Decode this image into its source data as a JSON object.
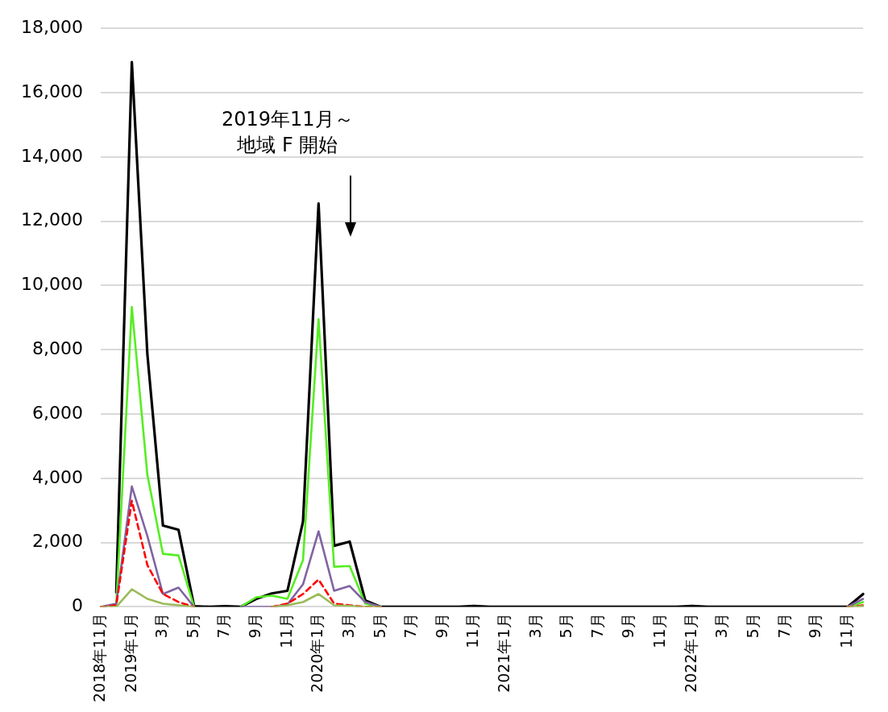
{
  "chart_data": {
    "type": "line",
    "categories": [
      "2018年11月",
      null,
      "2019年1月",
      null,
      "3月",
      null,
      "5月",
      null,
      "7月",
      null,
      "9月",
      null,
      "11月",
      null,
      "2020年1月",
      null,
      "3月",
      null,
      "5月",
      null,
      "7月",
      null,
      "9月",
      null,
      "11月",
      null,
      "2021年1月",
      null,
      "3月",
      null,
      "5月",
      null,
      "7月",
      null,
      "9月",
      null,
      "11月",
      null,
      "2022年1月",
      null,
      "3月",
      null,
      "5月",
      null,
      "7月",
      null,
      "9月",
      null,
      "11月",
      null
    ],
    "series": [
      {
        "color": "#9bbb59",
        "values": [
          0,
          0,
          550,
          250,
          100,
          50,
          0,
          null,
          null,
          null,
          null,
          0,
          50,
          150,
          400,
          50,
          30,
          0,
          0,
          null,
          null,
          null,
          null,
          null,
          null,
          null,
          null,
          null,
          null,
          null,
          null,
          null,
          null,
          null,
          null,
          null,
          null,
          null,
          null,
          null,
          null,
          null,
          null,
          null,
          null,
          null,
          null,
          null,
          0,
          20
        ]
      },
      {
        "color": "#ff0000",
        "line_style": "dashed",
        "values": [
          0,
          50,
          3300,
          1300,
          400,
          150,
          0,
          null,
          null,
          null,
          null,
          0,
          100,
          400,
          850,
          100,
          50,
          0,
          0,
          null,
          null,
          null,
          null,
          null,
          null,
          null,
          null,
          null,
          null,
          null,
          null,
          null,
          null,
          null,
          null,
          null,
          null,
          null,
          null,
          null,
          null,
          null,
          null,
          null,
          null,
          null,
          null,
          null,
          0,
          50
        ]
      },
      {
        "color": "#8064a2",
        "values": [
          0,
          100,
          3750,
          2200,
          400,
          600,
          0,
          null,
          null,
          0,
          0,
          0,
          80,
          700,
          2350,
          500,
          650,
          150,
          0,
          null,
          null,
          null,
          null,
          null,
          null,
          null,
          null,
          null,
          null,
          null,
          null,
          null,
          null,
          null,
          null,
          null,
          null,
          null,
          null,
          null,
          null,
          null,
          null,
          null,
          null,
          null,
          null,
          null,
          0,
          250
        ]
      },
      {
        "color": "#55ee22",
        "values": [
          null,
          100,
          9330,
          4100,
          1650,
          1600,
          0,
          null,
          null,
          0,
          300,
          350,
          250,
          1450,
          8950,
          1250,
          1270,
          100,
          0,
          null,
          null,
          null,
          null,
          null,
          null,
          null,
          null,
          null,
          null,
          null,
          null,
          null,
          null,
          null,
          null,
          null,
          null,
          null,
          null,
          null,
          null,
          null,
          null,
          null,
          null,
          null,
          null,
          null,
          0,
          150
        ]
      },
      {
        "color": "#000000",
        "values": [
          null,
          450,
          16950,
          7850,
          2530,
          2400,
          20,
          0,
          20,
          0,
          250,
          420,
          500,
          2650,
          12550,
          1900,
          2030,
          200,
          0,
          0,
          0,
          0,
          0,
          0,
          30,
          0,
          0,
          0,
          0,
          0,
          0,
          0,
          0,
          0,
          0,
          0,
          0,
          0,
          30,
          0,
          0,
          0,
          0,
          0,
          0,
          0,
          0,
          0,
          0,
          400
        ]
      }
    ],
    "ylim": [
      0,
      18000
    ],
    "yticks": [
      {
        "value": 0,
        "label": "0"
      },
      {
        "value": 2000,
        "label": "2,000"
      },
      {
        "value": 4000,
        "label": "4,000"
      },
      {
        "value": 6000,
        "label": "6,000"
      },
      {
        "value": 8000,
        "label": "8,000"
      },
      {
        "value": 10000,
        "label": "10,000"
      },
      {
        "value": 12000,
        "label": "12,000"
      },
      {
        "value": 14000,
        "label": "14,000"
      },
      {
        "value": 16000,
        "label": "16,000"
      },
      {
        "value": 18000,
        "label": "18,000"
      }
    ],
    "grid": "y",
    "legend": false,
    "marker": "none",
    "line_style": "solid",
    "annotations": [
      "2019年11月～",
      "地域 F 開始"
    ]
  }
}
